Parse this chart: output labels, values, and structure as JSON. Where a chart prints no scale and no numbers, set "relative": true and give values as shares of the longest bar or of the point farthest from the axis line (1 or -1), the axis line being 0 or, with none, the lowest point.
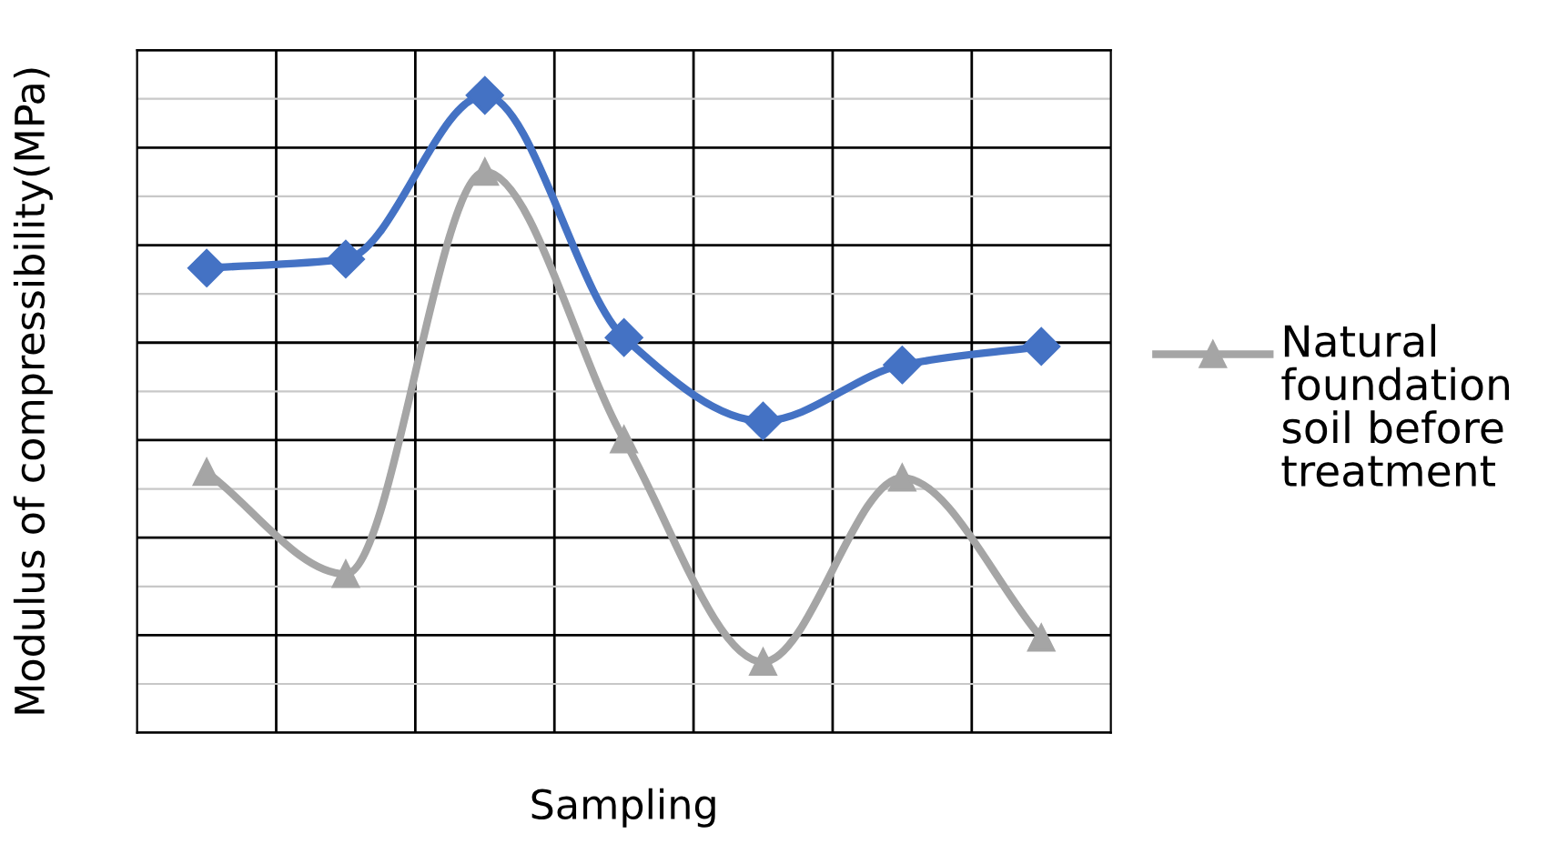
{
  "chart_data": {
    "type": "line",
    "relative": true,
    "xlabel": "Sampling",
    "ylabel": "Modulus of compressibility(MPa)",
    "categories": [
      null,
      null,
      null,
      null,
      null,
      null,
      null
    ],
    "series": [
      {
        "color": "#4472c4",
        "marker": "diamond",
        "values": [
          0.729,
          0.743,
          1.0,
          0.62,
          0.489,
          0.577,
          0.606
        ]
      },
      {
        "name": "Natural foundation soil before treatment",
        "color": "#a5a5a5",
        "marker": "triangle",
        "values": [
          0.409,
          0.249,
          0.88,
          0.46,
          0.111,
          0.4,
          0.149
        ]
      }
    ],
    "grid": true,
    "legend": "right"
  }
}
